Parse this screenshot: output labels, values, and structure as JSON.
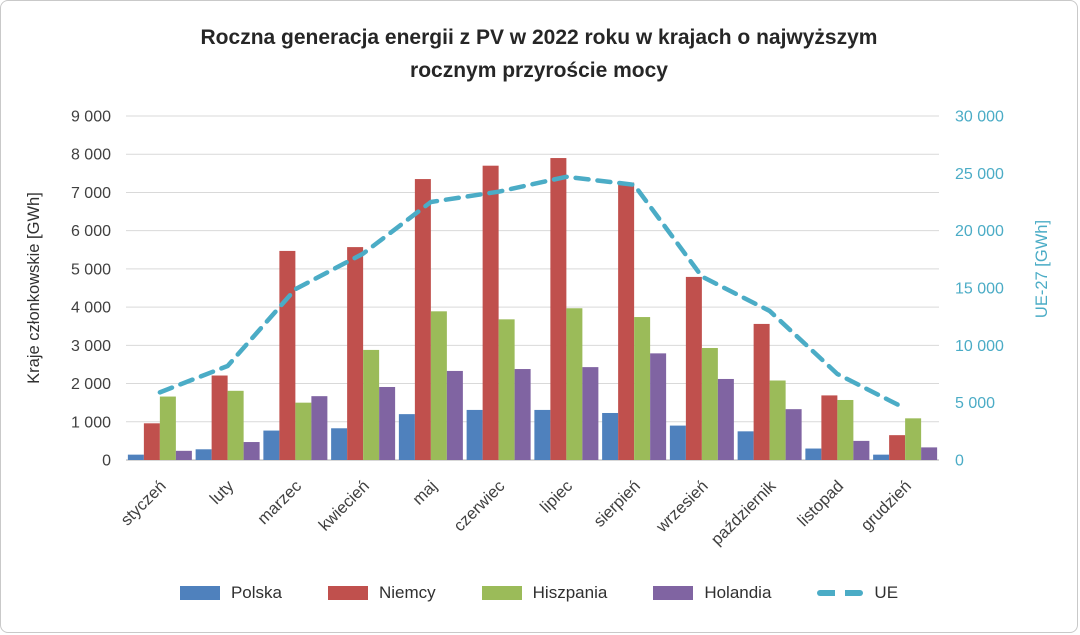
{
  "header": {
    "title_line1": "Roczna generacja energii z PV w 2022 roku w krajach o najwyższym",
    "title_line2": "rocznym przyroście mocy"
  },
  "chart_data": {
    "type": "bar",
    "subtype": "grouped bars with secondary-axis dashed line",
    "title": "Roczna generacja energii z PV w 2022 roku w krajach o najwyższym rocznym przyroście mocy",
    "categories": [
      "styczeń",
      "luty",
      "marzec",
      "kwiecień",
      "maj",
      "czerwiec",
      "lipiec",
      "sierpień",
      "wrzesień",
      "październik",
      "listopad",
      "grudzień"
    ],
    "series": [
      {
        "name": "Polska",
        "type": "bar",
        "axis": "left",
        "color": "#4F81BD",
        "values": [
          140,
          280,
          770,
          830,
          1200,
          1310,
          1310,
          1230,
          900,
          750,
          300,
          140
        ]
      },
      {
        "name": "Niemcy",
        "type": "bar",
        "axis": "left",
        "color": "#C0504D",
        "values": [
          960,
          2210,
          5470,
          5570,
          7350,
          7700,
          7900,
          7260,
          4790,
          3560,
          1690,
          650
        ]
      },
      {
        "name": "Hiszpania",
        "type": "bar",
        "axis": "left",
        "color": "#9BBB59",
        "values": [
          1660,
          1810,
          1500,
          2880,
          3890,
          3680,
          3970,
          3740,
          2930,
          2080,
          1570,
          1090
        ]
      },
      {
        "name": "Holandia",
        "type": "bar",
        "axis": "left",
        "color": "#8064A2",
        "values": [
          240,
          470,
          1670,
          1910,
          2330,
          2380,
          2430,
          2790,
          2120,
          1330,
          500,
          330
        ]
      },
      {
        "name": "UE",
        "type": "line",
        "axis": "right",
        "dashed": true,
        "color": "#4BACC6",
        "values": [
          5900,
          8200,
          14900,
          18000,
          22500,
          23400,
          24700,
          24000,
          16000,
          13000,
          7500,
          4500
        ]
      }
    ],
    "left_axis": {
      "label": "Kraje członkowskie [GWh]",
      "min": 0,
      "max": 9000,
      "step": 1000,
      "tick_labels": [
        "0",
        "1 000",
        "2 000",
        "3 000",
        "4 000",
        "5 000",
        "6 000",
        "7 000",
        "8 000",
        "9 000"
      ]
    },
    "right_axis": {
      "label": "UE-27 [GWh]",
      "min": 0,
      "max": 30000,
      "step": 5000,
      "tick_labels": [
        "0",
        "5 000",
        "10 000",
        "15 000",
        "20 000",
        "25 000",
        "30 000"
      ]
    },
    "grid": true,
    "legend_position": "bottom",
    "style": {
      "gridline_color": "#D9D9D9",
      "baseline_color": "#BFBFBF",
      "tick_text_color": "#404040",
      "right_axis_text_color": "#4BACC6",
      "title_color": "#262626"
    }
  }
}
